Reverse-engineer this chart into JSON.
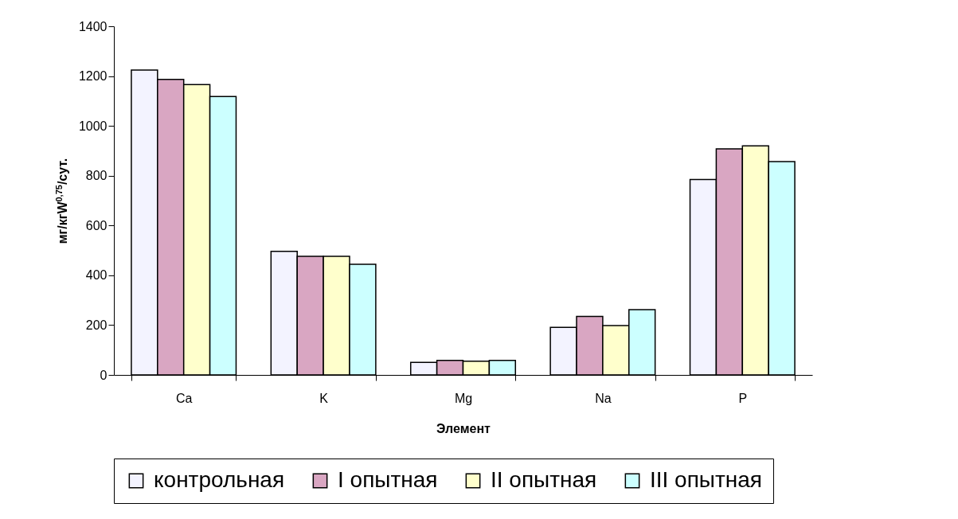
{
  "chart_data": {
    "type": "bar",
    "xlabel": "Элемент",
    "ylabel": "мг/кгW$^{0,75}$/сут.",
    "categories": [
      "Ca",
      "K",
      "Mg",
      "Na",
      "P"
    ],
    "series": [
      {
        "name": "контрольная",
        "color": "#f3f3ff",
        "values": [
          1224,
          496,
          50,
          191,
          785
        ]
      },
      {
        "name": "I опытная",
        "color": "#d9a6c2",
        "values": [
          1187,
          476,
          58,
          235,
          908
        ]
      },
      {
        "name": "II опытная",
        "color": "#ffffcc",
        "values": [
          1166,
          476,
          55,
          198,
          920
        ]
      },
      {
        "name": "III опытная",
        "color": "#ccffff",
        "values": [
          1118,
          444,
          58,
          262,
          857
        ]
      }
    ],
    "ylim": [
      0,
      1400
    ],
    "yticks": [
      0,
      200,
      400,
      600,
      800,
      1000,
      1200,
      1400
    ],
    "grid": false,
    "legend": "bottom"
  }
}
